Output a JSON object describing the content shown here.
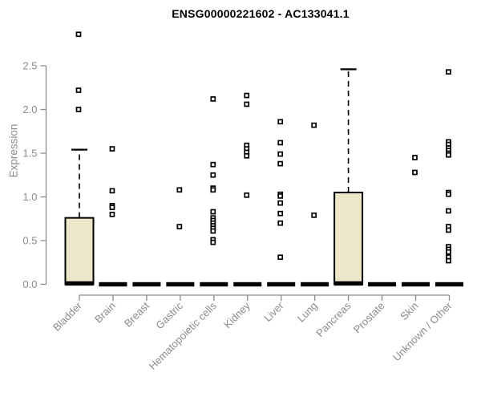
{
  "title": "ENSG00000221602 - AC133041.1",
  "chart_data": {
    "type": "boxplot",
    "title": "ENSG00000221602 - AC133041.1",
    "ylabel": "Expression",
    "xlabel": "",
    "ylim": [
      0,
      2.5
    ],
    "yticks": [
      "0.0",
      "0.5",
      "1.0",
      "1.5",
      "2.0",
      "2.5"
    ],
    "grid": false,
    "legend": "none",
    "categories": [
      "Bladder",
      "Brain",
      "Breast",
      "Gastric",
      "Hematopoietic cells",
      "Kidney",
      "Liver",
      "Lung",
      "Pancreas",
      "Prostate",
      "Skin",
      "Unknown / Other"
    ],
    "boxes": [
      {
        "category": "Bladder",
        "q1": 0,
        "median": 0.01,
        "q3": 0.76,
        "whisker_low": 0,
        "whisker_high": 1.54,
        "outliers": [
          2.86,
          2.22,
          2.0
        ]
      },
      {
        "category": "Brain",
        "q1": 0,
        "median": 0,
        "q3": 0,
        "whisker_low": 0,
        "whisker_high": 0,
        "outliers": [
          1.55,
          1.07,
          0.9,
          0.88,
          0.8
        ]
      },
      {
        "category": "Breast",
        "q1": 0,
        "median": 0,
        "q3": 0,
        "whisker_low": 0,
        "whisker_high": 0,
        "outliers": []
      },
      {
        "category": "Gastric",
        "q1": 0,
        "median": 0,
        "q3": 0,
        "whisker_low": 0,
        "whisker_high": 0,
        "outliers": [
          1.08,
          0.66
        ]
      },
      {
        "category": "Hematopoietic cells",
        "q1": 0,
        "median": 0,
        "q3": 0,
        "whisker_low": 0,
        "whisker_high": 0,
        "outliers": [
          2.12,
          1.37,
          1.25,
          1.1,
          1.08,
          0.83,
          0.76,
          0.73,
          0.7,
          0.67,
          0.64,
          0.61,
          0.51,
          0.48
        ]
      },
      {
        "category": "Kidney",
        "q1": 0,
        "median": 0,
        "q3": 0,
        "whisker_low": 0,
        "whisker_high": 0,
        "outliers": [
          2.16,
          2.06,
          1.59,
          1.55,
          1.51,
          1.47,
          1.02
        ]
      },
      {
        "category": "Liver",
        "q1": 0,
        "median": 0,
        "q3": 0,
        "whisker_low": 0,
        "whisker_high": 0,
        "outliers": [
          1.86,
          1.62,
          1.49,
          1.38,
          1.03,
          1.01,
          0.93,
          0.81,
          0.7,
          0.31
        ]
      },
      {
        "category": "Lung",
        "q1": 0,
        "median": 0,
        "q3": 0,
        "whisker_low": 0,
        "whisker_high": 0,
        "outliers": [
          1.82,
          0.79
        ]
      },
      {
        "category": "Pancreas",
        "q1": 0,
        "median": 0.01,
        "q3": 1.05,
        "whisker_low": 0,
        "whisker_high": 2.46,
        "outliers": []
      },
      {
        "category": "Prostate",
        "q1": 0,
        "median": 0,
        "q3": 0,
        "whisker_low": 0,
        "whisker_high": 0,
        "outliers": []
      },
      {
        "category": "Skin",
        "q1": 0,
        "median": 0,
        "q3": 0,
        "whisker_low": 0,
        "whisker_high": 0,
        "outliers": [
          1.45,
          1.28
        ]
      },
      {
        "category": "Unknown / Other",
        "q1": 0,
        "median": 0,
        "q3": 0,
        "whisker_low": 0,
        "whisker_high": 0,
        "outliers": [
          2.43,
          1.63,
          1.6,
          1.56,
          1.53,
          1.5,
          1.48,
          1.05,
          1.03,
          0.84,
          0.66,
          0.62,
          0.43,
          0.4,
          0.37,
          0.31,
          0.27
        ]
      }
    ],
    "colors": {
      "box_fill": "#EDE7C9",
      "box_stroke": "#000000",
      "median": "#000000",
      "outlier_stroke": "#000000",
      "outlier_fill": "#FFFFFF",
      "axis": "#8B8B8B",
      "title": "#000000",
      "background": "#FFFFFF"
    }
  }
}
